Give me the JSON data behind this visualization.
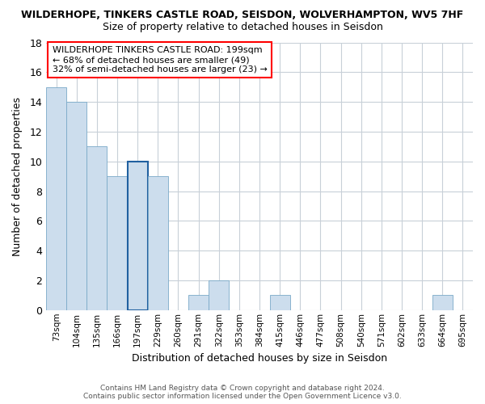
{
  "title": "WILDERHOPE, TINKERS CASTLE ROAD, SEISDON, WOLVERHAMPTON, WV5 7HF",
  "subtitle": "Size of property relative to detached houses in Seisdon",
  "xlabel": "Distribution of detached houses by size in Seisdon",
  "ylabel": "Number of detached properties",
  "categories": [
    "73sqm",
    "104sqm",
    "135sqm",
    "166sqm",
    "197sqm",
    "229sqm",
    "260sqm",
    "291sqm",
    "322sqm",
    "353sqm",
    "384sqm",
    "415sqm",
    "446sqm",
    "477sqm",
    "508sqm",
    "540sqm",
    "571sqm",
    "602sqm",
    "633sqm",
    "664sqm",
    "695sqm"
  ],
  "values": [
    15,
    14,
    11,
    9,
    10,
    9,
    0,
    1,
    2,
    0,
    0,
    1,
    0,
    0,
    0,
    0,
    0,
    0,
    0,
    1,
    0
  ],
  "bar_color": "#ccdded",
  "bar_edge_color": "#7aaac8",
  "highlight_index": 4,
  "highlight_edge_color": "#2060a0",
  "ylim": [
    0,
    18
  ],
  "yticks": [
    0,
    2,
    4,
    6,
    8,
    10,
    12,
    14,
    16,
    18
  ],
  "annotation_text": "WILDERHOPE TINKERS CASTLE ROAD: 199sqm\n← 68% of detached houses are smaller (49)\n32% of semi-detached houses are larger (23) →",
  "footnote": "Contains HM Land Registry data © Crown copyright and database right 2024.\nContains public sector information licensed under the Open Government Licence v3.0.",
  "bg_color": "#ffffff",
  "grid_color": "#c8d0d8"
}
